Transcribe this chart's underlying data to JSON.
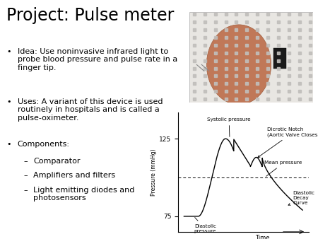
{
  "title": "Project: Pulse meter",
  "title_fontsize": 17,
  "background_color": "#ffffff",
  "text_color": "#000000",
  "bullet1": "Idea: Use noninvasive infrared light to\nprobe blood pressure and pulse rate in a\nfinger tip.",
  "bullet2": "Uses: A variant of this device is used\nroutinely in hospitals and is called a\npulse-oximeter.",
  "bullet3_main": "Components:",
  "bullet3_sub": [
    "Comparator",
    "Amplifiers and filters",
    "Light emitting diodes and\nphotosensors"
  ],
  "bullet_fontsize": 8.0,
  "graph": {
    "yticks": [
      75,
      125
    ],
    "ylabel": "Pressure (mmHg)",
    "xlabel": "Time",
    "mean_pressure": 100,
    "systolic_label": "Systolic pressure",
    "dicrotic_label": "Dicrotic Notch\n(Aortic Valve Closes)",
    "mean_label": "Mean pressure",
    "diastolic_label": "Diastolic\npressure",
    "decay_label": "Diastolic\nDecay\nCurve"
  },
  "img": {
    "bg_color": "#e8e4e0",
    "finger_color": "#c07858",
    "finger_edge": "#a06040",
    "grid_color": "#d0ccc8",
    "dark_color": "#111111"
  }
}
